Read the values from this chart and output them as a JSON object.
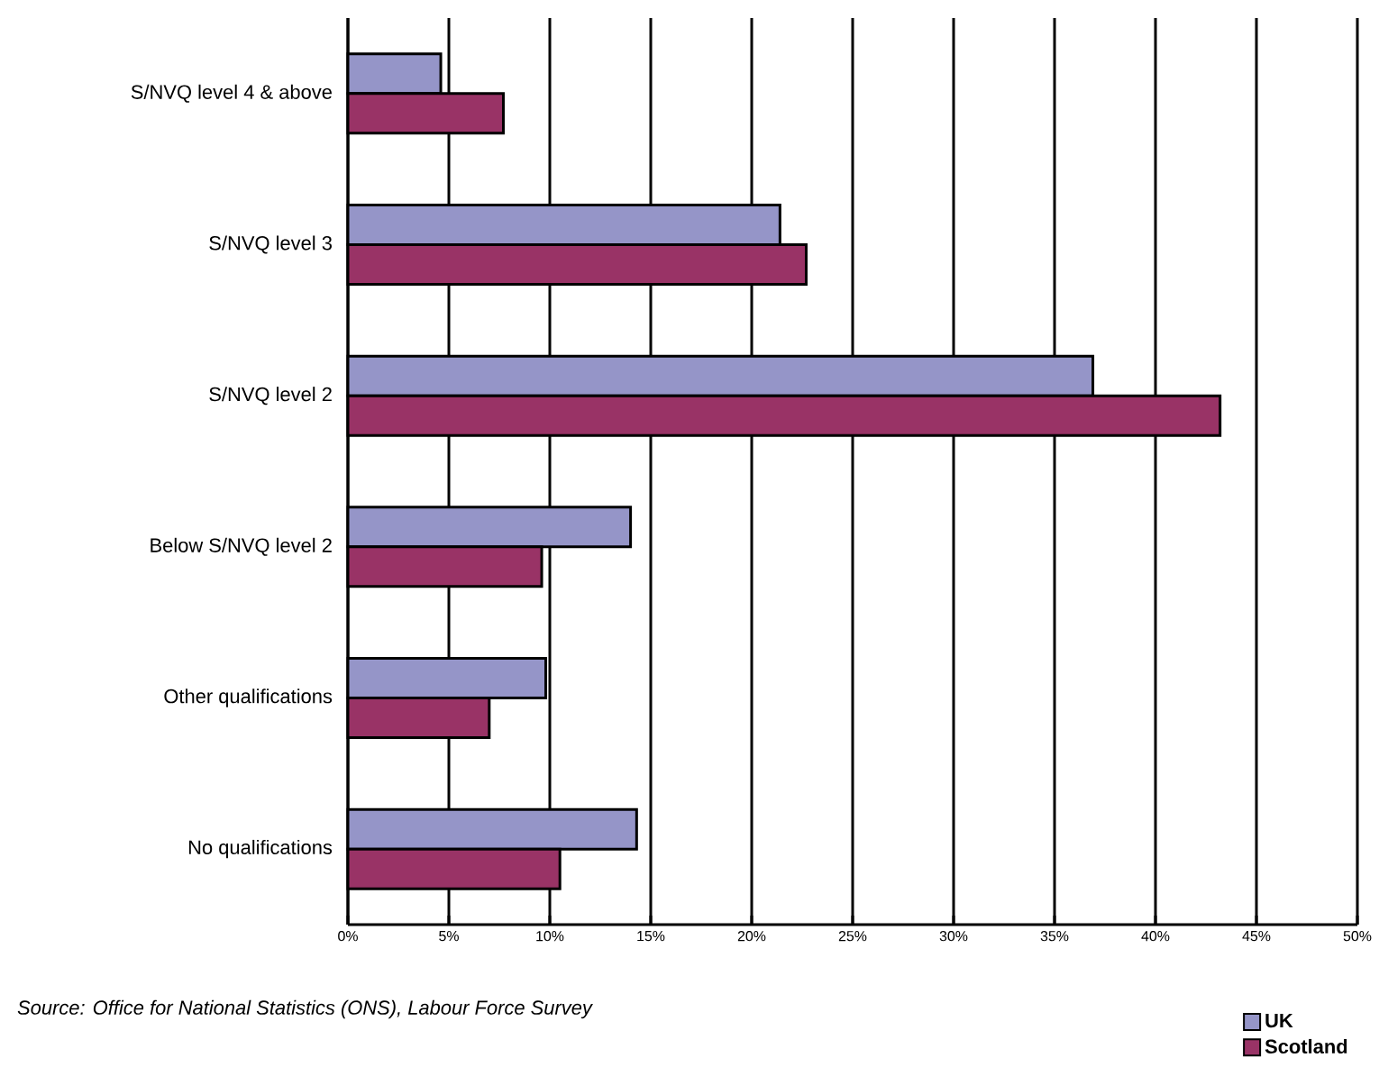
{
  "chart_data": {
    "type": "bar",
    "orientation": "horizontal",
    "categories": [
      "S/NVQ level 4 & above",
      "S/NVQ level 3",
      "S/NVQ level 2",
      "Below S/NVQ level 2",
      "Other qualifications",
      "No qualifications"
    ],
    "series": [
      {
        "name": "UK",
        "color": "#9595c8",
        "values": [
          4.6,
          21.4,
          36.9,
          14.0,
          9.8,
          14.3
        ]
      },
      {
        "name": "Scotland",
        "color": "#993366",
        "values": [
          7.7,
          22.7,
          43.2,
          9.6,
          7.0,
          10.5
        ]
      }
    ],
    "xlim": [
      0,
      50
    ],
    "xticks": [
      {
        "value": 0,
        "label": "0%"
      },
      {
        "value": 5,
        "label": "5%"
      },
      {
        "value": 10,
        "label": "10%"
      },
      {
        "value": 15,
        "label": "15%"
      },
      {
        "value": 20,
        "label": "20%"
      },
      {
        "value": 25,
        "label": "25%"
      },
      {
        "value": 30,
        "label": "30%"
      },
      {
        "value": 35,
        "label": "35%"
      },
      {
        "value": 40,
        "label": "40%"
      },
      {
        "value": 45,
        "label": "45%"
      },
      {
        "value": 50,
        "label": "50%"
      }
    ],
    "grid": "x",
    "legend": "bottom right",
    "annotations": [
      "Source: Office for National Statistics (ONS), Labour Force Survey"
    ]
  }
}
